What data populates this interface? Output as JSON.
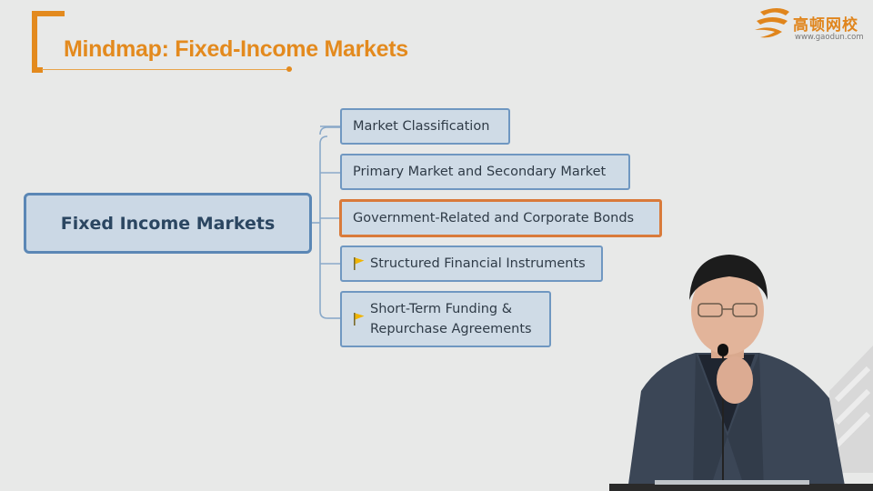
{
  "slide": {
    "title": "Mindmap: Fixed-Income Markets"
  },
  "logo": {
    "name": "高顿网校",
    "url": "www.gaodun.com",
    "color": "#e0851c"
  },
  "mindmap": {
    "root": "Fixed Income Markets",
    "branches": [
      {
        "label": "Market Classification",
        "flag": false,
        "selected": false
      },
      {
        "label": "Primary Market and Secondary Market",
        "flag": false,
        "selected": false
      },
      {
        "label": "Government-Related and Corporate Bonds",
        "flag": false,
        "selected": true
      },
      {
        "label": "Structured Financial Instruments",
        "flag": true,
        "selected": false
      },
      {
        "label": "Short-Term Funding &\nRepurchase Agreements",
        "flag": true,
        "selected": false
      }
    ],
    "accent_color": "#e38a1e",
    "node_border_color": "#6f97c1",
    "selected_border_color": "#d97a3a",
    "flag_color": "#f0b400"
  }
}
